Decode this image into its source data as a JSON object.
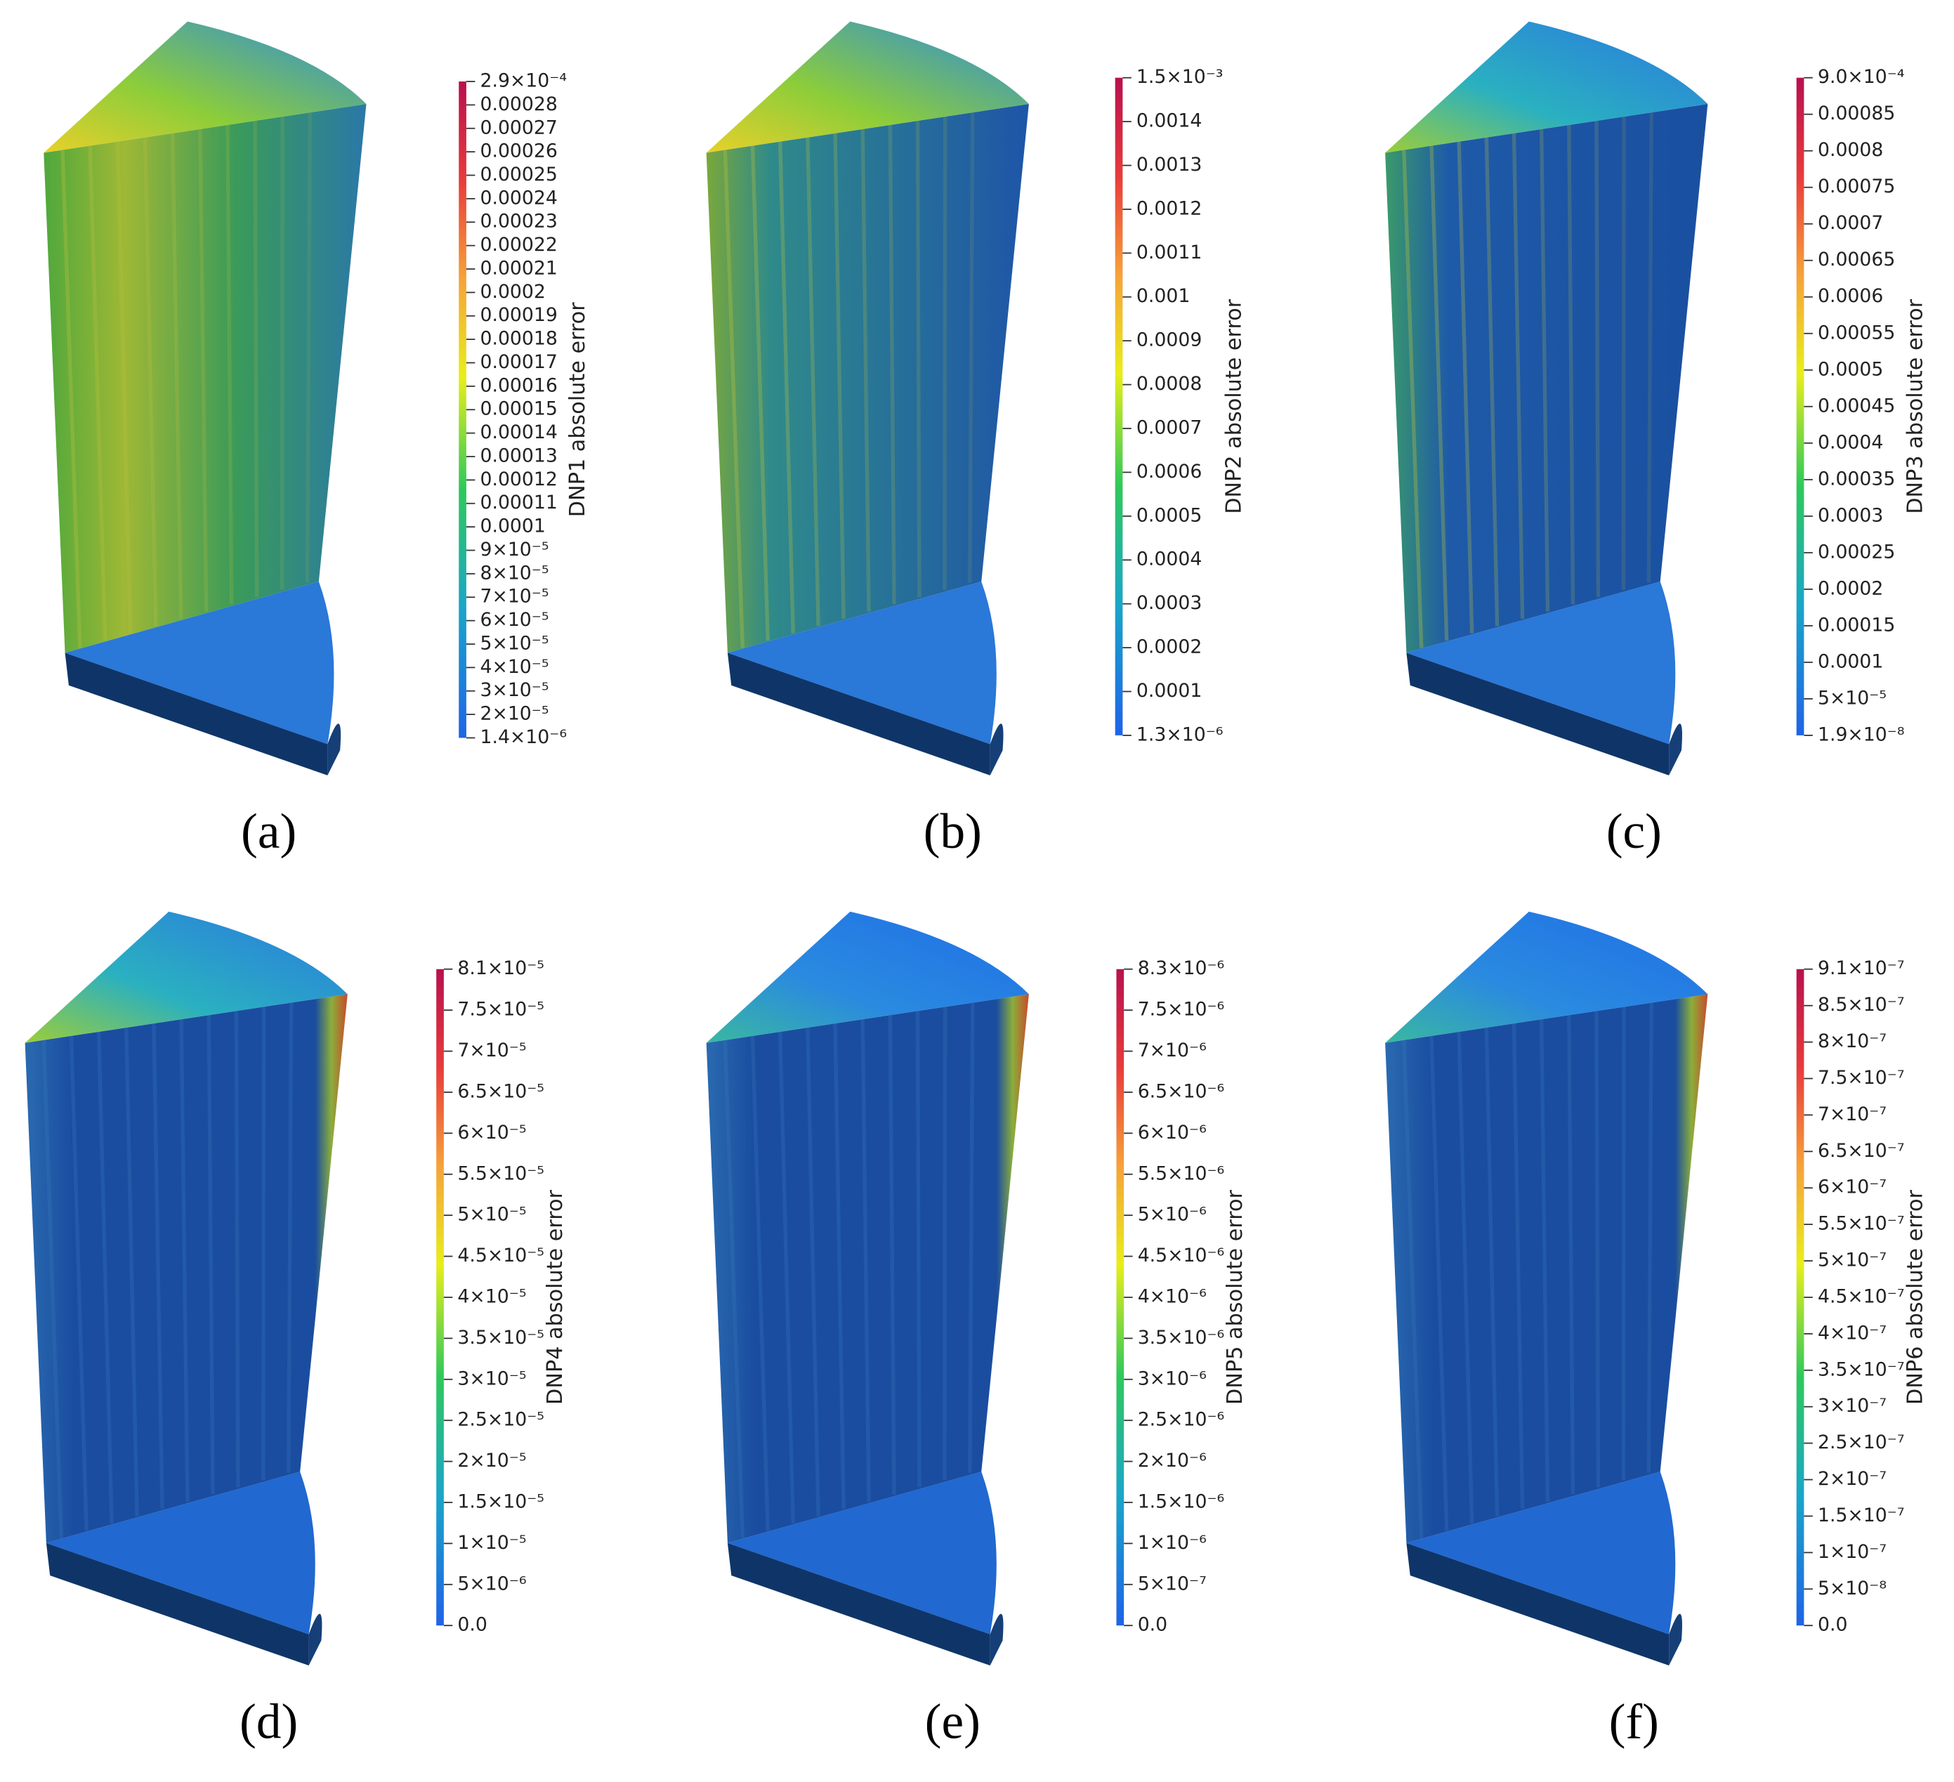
{
  "panels": [
    {
      "label": "(a)",
      "colorbar": {
        "title": "DNP1 absolute error",
        "ticks": [
          "2.9×10⁻⁴",
          "0.00028",
          "0.00027",
          "0.00026",
          "0.00025",
          "0.00024",
          "0.00023",
          "0.00022",
          "0.00021",
          "0.0002",
          "0.00019",
          "0.00018",
          "0.00017",
          "0.00016",
          "0.00015",
          "0.00014",
          "0.00013",
          "0.00012",
          "0.00011",
          "0.0001",
          "9×10⁻⁵",
          "8×10⁻⁵",
          "7×10⁻⁵",
          "6×10⁻⁵",
          "5×10⁻⁵",
          "4×10⁻⁵",
          "3×10⁻⁵",
          "2×10⁻⁵",
          "1.4×10⁻⁶"
        ]
      }
    },
    {
      "label": "(b)",
      "colorbar": {
        "title": "DNP2 absolute error",
        "ticks": [
          "1.5×10⁻³",
          "0.0014",
          "0.0013",
          "0.0012",
          "0.0011",
          "0.001",
          "0.0009",
          "0.0008",
          "0.0007",
          "0.0006",
          "0.0005",
          "0.0004",
          "0.0003",
          "0.0002",
          "0.0001",
          "1.3×10⁻⁶"
        ]
      }
    },
    {
      "label": "(c)",
      "colorbar": {
        "title": "DNP3 absolute error",
        "ticks": [
          "9.0×10⁻⁴",
          "0.00085",
          "0.0008",
          "0.00075",
          "0.0007",
          "0.00065",
          "0.0006",
          "0.00055",
          "0.0005",
          "0.00045",
          "0.0004",
          "0.00035",
          "0.0003",
          "0.00025",
          "0.0002",
          "0.00015",
          "0.0001",
          "5×10⁻⁵",
          "1.9×10⁻⁸"
        ]
      }
    },
    {
      "label": "(d)",
      "colorbar": {
        "title": "DNP4 absolute error",
        "ticks": [
          "8.1×10⁻⁵",
          "7.5×10⁻⁵",
          "7×10⁻⁵",
          "6.5×10⁻⁵",
          "6×10⁻⁵",
          "5.5×10⁻⁵",
          "5×10⁻⁵",
          "4.5×10⁻⁵",
          "4×10⁻⁵",
          "3.5×10⁻⁵",
          "3×10⁻⁵",
          "2.5×10⁻⁵",
          "2×10⁻⁵",
          "1.5×10⁻⁵",
          "1×10⁻⁵",
          "5×10⁻⁶",
          "0.0"
        ]
      }
    },
    {
      "label": "(e)",
      "colorbar": {
        "title": "DNP5 absolute error",
        "ticks": [
          "8.3×10⁻⁶",
          "7.5×10⁻⁶",
          "7×10⁻⁶",
          "6.5×10⁻⁶",
          "6×10⁻⁶",
          "5.5×10⁻⁶",
          "5×10⁻⁶",
          "4.5×10⁻⁶",
          "4×10⁻⁶",
          "3.5×10⁻⁶",
          "3×10⁻⁶",
          "2.5×10⁻⁶",
          "2×10⁻⁶",
          "1.5×10⁻⁶",
          "1×10⁻⁶",
          "5×10⁻⁷",
          "0.0"
        ]
      }
    },
    {
      "label": "(f)",
      "colorbar": {
        "title": "DNP6 absolute error",
        "ticks": [
          "9.1×10⁻⁷",
          "8.5×10⁻⁷",
          "8×10⁻⁷",
          "7.5×10⁻⁷",
          "7×10⁻⁷",
          "6.5×10⁻⁷",
          "6×10⁻⁷",
          "5.5×10⁻⁷",
          "5×10⁻⁷",
          "4.5×10⁻⁷",
          "4×10⁻⁷",
          "3.5×10⁻⁷",
          "3×10⁻⁷",
          "2.5×10⁻⁷",
          "2×10⁻⁷",
          "1.5×10⁻⁷",
          "1×10⁻⁷",
          "5×10⁻⁸",
          "0.0"
        ]
      }
    }
  ]
}
